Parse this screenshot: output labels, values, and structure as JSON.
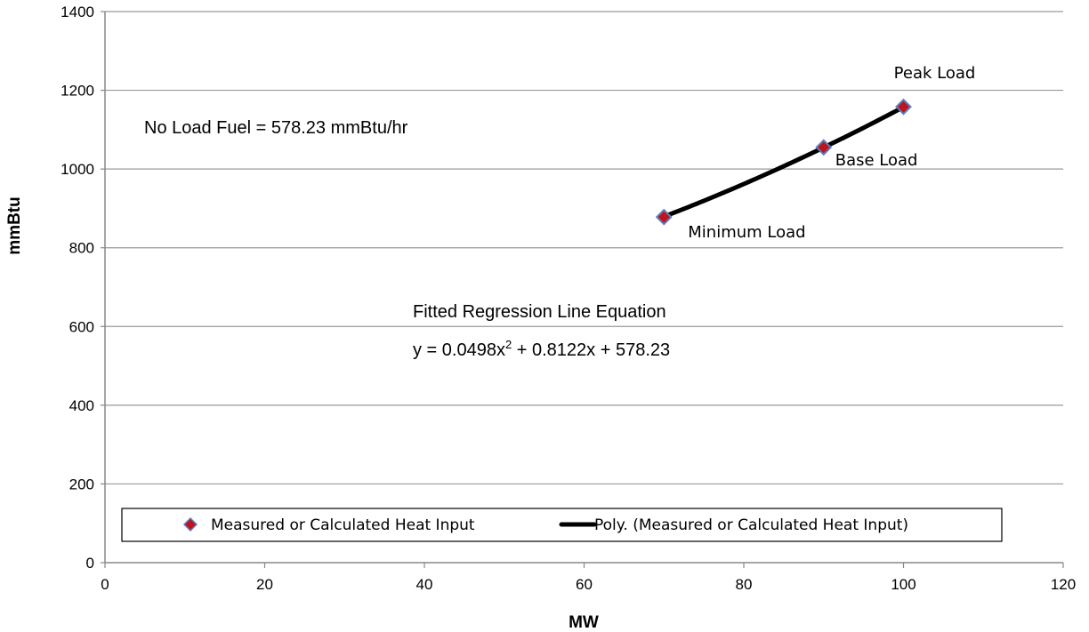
{
  "chart_data": {
    "type": "scatter",
    "xlabel": "MW",
    "ylabel": "mmBtu",
    "xlim": [
      0,
      120
    ],
    "ylim": [
      0,
      1400
    ],
    "xticks": [
      0,
      20,
      40,
      60,
      80,
      100,
      120
    ],
    "yticks": [
      0,
      200,
      400,
      600,
      800,
      1000,
      1200,
      1400
    ],
    "x_tick_labels": [
      "0",
      "20",
      "40",
      "60",
      "80",
      "100",
      "120"
    ],
    "y_tick_labels": [
      "0",
      "200",
      "400",
      "600",
      "800",
      "1000",
      "1200",
      "1400"
    ],
    "grid": "horizontal",
    "legend_position": "bottom",
    "series": [
      {
        "name": "Measured or Calculated Heat Input",
        "type": "scatter",
        "marker": "diamond",
        "color": "#c0141c",
        "edge_color": "#5b7fbf",
        "points": [
          {
            "x": 70,
            "y": 878,
            "label": "Minimum Load"
          },
          {
            "x": 90,
            "y": 1055,
            "label": "Base Load"
          },
          {
            "x": 100,
            "y": 1158,
            "label": "Peak Load"
          }
        ]
      },
      {
        "name": "Poly. (Measured or Calculated Heat Input)",
        "type": "line",
        "color": "#000000",
        "fit": "polynomial-2",
        "coefficients": {
          "a": 0.0498,
          "b": 0.8122,
          "c": 578.23
        },
        "x_range": [
          70,
          100
        ]
      }
    ],
    "annotations": {
      "no_load": "No Load Fuel = 578.23 mmBtu/hr",
      "eq_title": "Fitted Regression Line Equation",
      "eq_prefix": "y = 0.0498x",
      "eq_sup": "2",
      "eq_suffix": " + 0.8122x + 578.23"
    }
  }
}
